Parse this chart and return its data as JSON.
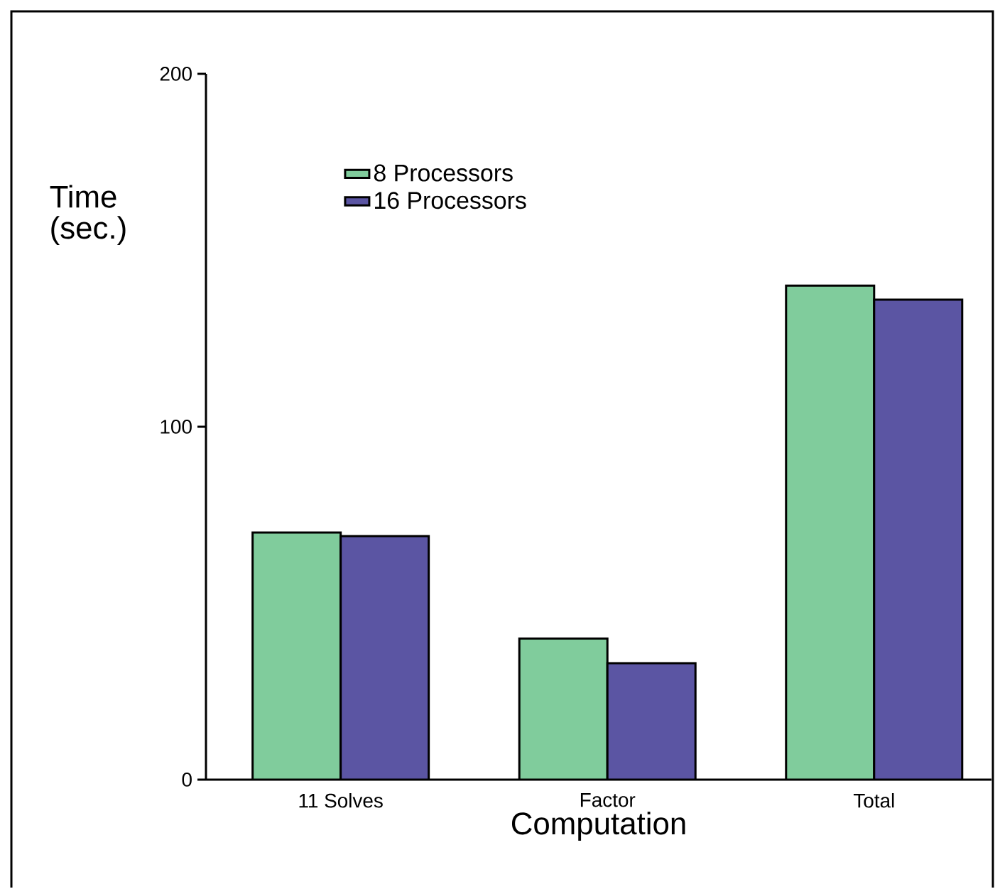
{
  "chart_data": {
    "type": "bar",
    "xlabel": "Computation",
    "ylabel": "Time (sec.)",
    "categories": [
      "11 Solves",
      "Factor",
      "Total"
    ],
    "series": [
      {
        "name": "8   Processors",
        "color": "#80cc9c",
        "values": [
          70,
          40,
          140
        ]
      },
      {
        "name": "16 Processors",
        "color": "#5b55a3",
        "values": [
          69,
          33,
          136
        ]
      }
    ],
    "ylim": [
      0,
      200
    ],
    "yticks": [
      0,
      100,
      200
    ],
    "legend": "top left",
    "grid": false
  }
}
